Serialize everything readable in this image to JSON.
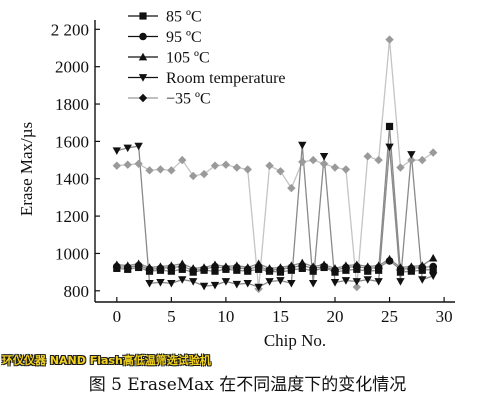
{
  "watermark": "环仪仪器 NAND Flash高低温筛选试验机",
  "caption": "图 5 EraseMax 在不同温度下的变化情况",
  "chart_data": {
    "type": "line",
    "xlabel": "Chip No.",
    "ylabel": "Erase Max/µs",
    "xlim": [
      -2,
      31
    ],
    "ylim": [
      740,
      2250
    ],
    "xticks": [
      0,
      5,
      10,
      15,
      20,
      25,
      30
    ],
    "yticks": [
      800,
      1000,
      1200,
      1400,
      1600,
      1800,
      2000,
      2200
    ],
    "ytick_labels": [
      "800",
      "1000",
      "1200",
      "1400",
      "1600",
      "1800",
      "2000",
      "2 200"
    ],
    "legend_position": "top-left",
    "grid": false,
    "series": [
      {
        "name": "85 ºC",
        "marker": "square",
        "color": "#111111",
        "line_color": "#8a8a8a",
        "x": [
          0,
          1,
          2,
          3,
          4,
          5,
          6,
          7,
          8,
          9,
          10,
          11,
          12,
          13,
          14,
          15,
          16,
          17,
          18,
          19,
          20,
          21,
          22,
          23,
          24,
          25,
          26,
          27,
          28,
          29
        ],
        "values": [
          920,
          915,
          925,
          905,
          910,
          905,
          915,
          900,
          910,
          905,
          915,
          910,
          905,
          915,
          905,
          900,
          910,
          920,
          905,
          925,
          900,
          910,
          915,
          905,
          910,
          1680,
          900,
          905,
          910,
          915
        ]
      },
      {
        "name": "95 ºC",
        "marker": "circle",
        "color": "#111111",
        "line_color": "#8a8a8a",
        "x": [
          0,
          1,
          2,
          3,
          4,
          5,
          6,
          7,
          8,
          9,
          10,
          11,
          12,
          13,
          14,
          15,
          16,
          17,
          18,
          19,
          20,
          21,
          22,
          23,
          24,
          25,
          26,
          27,
          28,
          29
        ],
        "values": [
          930,
          925,
          935,
          915,
          920,
          925,
          930,
          910,
          915,
          930,
          920,
          925,
          915,
          930,
          910,
          915,
          925,
          935,
          920,
          930,
          910,
          925,
          930,
          920,
          925,
          960,
          915,
          920,
          925,
          930
        ]
      },
      {
        "name": "105 ºC",
        "marker": "triangle-up",
        "color": "#111111",
        "line_color": "#8a8a8a",
        "x": [
          0,
          1,
          2,
          3,
          4,
          5,
          6,
          7,
          8,
          9,
          10,
          11,
          12,
          13,
          14,
          15,
          16,
          17,
          18,
          19,
          20,
          21,
          22,
          23,
          24,
          25,
          26,
          27,
          28,
          29
        ],
        "values": [
          940,
          935,
          945,
          925,
          930,
          935,
          945,
          920,
          925,
          940,
          930,
          935,
          925,
          945,
          920,
          925,
          935,
          950,
          930,
          940,
          920,
          935,
          940,
          930,
          935,
          970,
          925,
          930,
          935,
          975
        ]
      },
      {
        "name": "Room temperature",
        "marker": "triangle-down",
        "color": "#111111",
        "line_color": "#8a8a8a",
        "x": [
          0,
          1,
          2,
          3,
          4,
          5,
          6,
          7,
          8,
          9,
          10,
          11,
          12,
          13,
          14,
          15,
          16,
          17,
          18,
          19,
          20,
          21,
          22,
          23,
          24,
          25,
          26,
          27,
          28,
          29
        ],
        "values": [
          1550,
          1565,
          1575,
          840,
          845,
          840,
          860,
          850,
          825,
          830,
          850,
          835,
          840,
          820,
          850,
          855,
          840,
          1580,
          840,
          1520,
          845,
          855,
          850,
          860,
          850,
          1570,
          850,
          1530,
          860,
          880
        ]
      },
      {
        "name": "−35 ºC",
        "marker": "diamond",
        "color": "#9a9a9a",
        "line_color": "#c4c4c4",
        "x": [
          0,
          1,
          2,
          3,
          4,
          5,
          6,
          7,
          8,
          9,
          10,
          11,
          12,
          13,
          14,
          15,
          16,
          17,
          18,
          19,
          20,
          21,
          22,
          23,
          24,
          25,
          26,
          27,
          28,
          29
        ],
        "values": [
          1470,
          1475,
          1480,
          1445,
          1450,
          1445,
          1500,
          1415,
          1425,
          1470,
          1475,
          1460,
          1450,
          810,
          1470,
          1440,
          1350,
          1490,
          1500,
          1480,
          1460,
          1450,
          820,
          1520,
          1500,
          2145,
          1460,
          1500,
          1500,
          1540
        ]
      }
    ]
  }
}
